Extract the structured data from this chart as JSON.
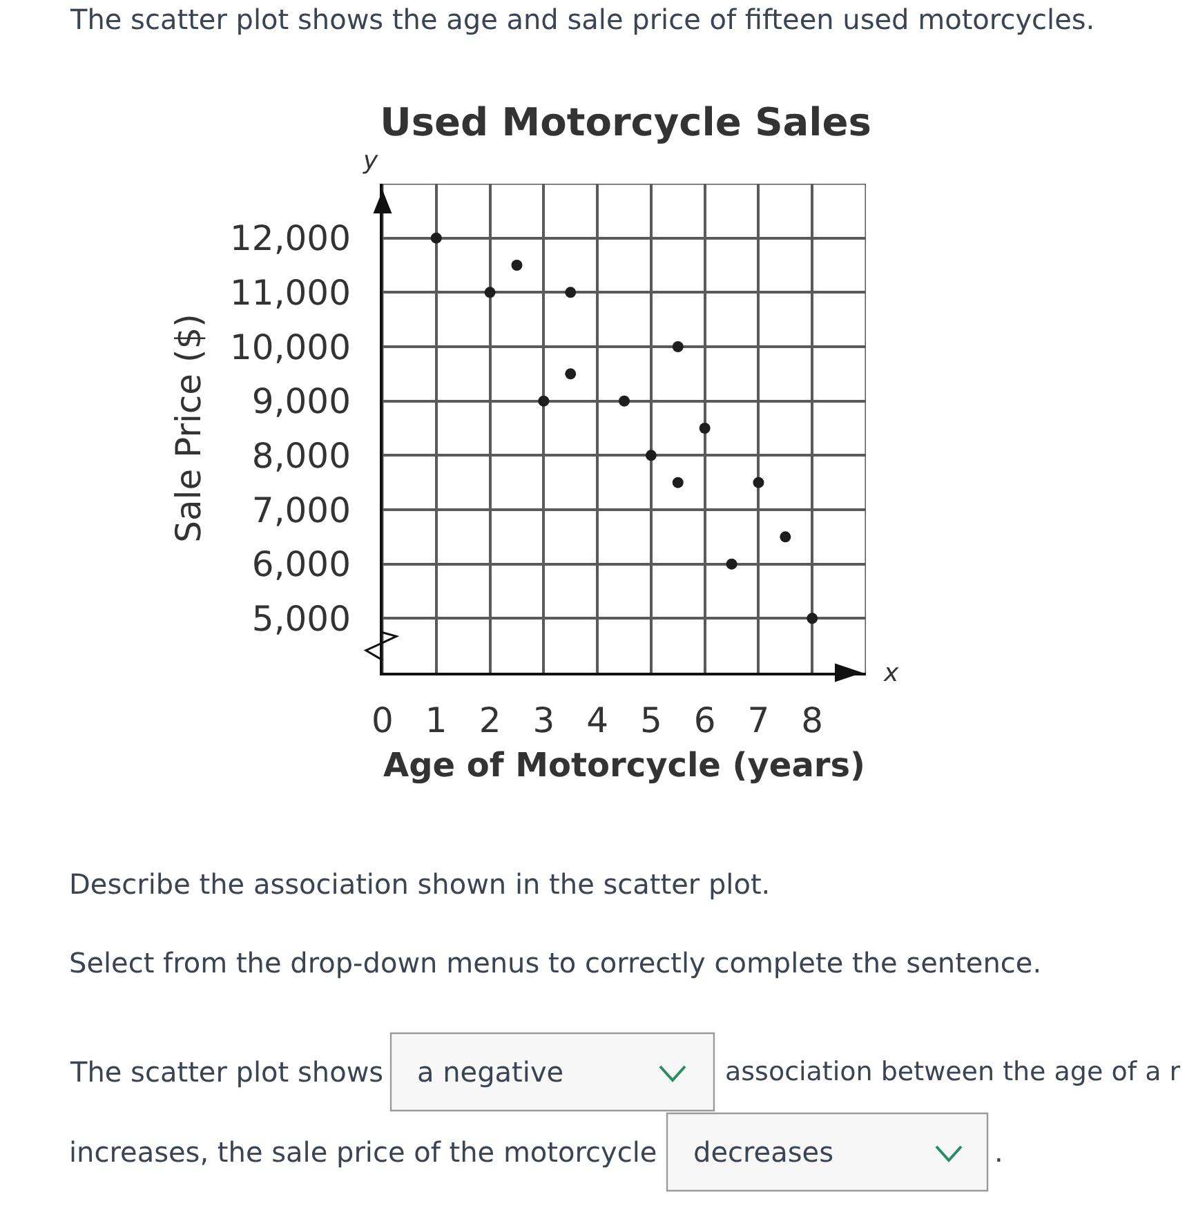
{
  "chart_data": {
    "type": "scatter",
    "title": "Used Motorcycle Sales",
    "xlabel": "Age of Motorcycle (years)",
    "ylabel": "Sale Price ($)",
    "annotations": [
      "y",
      "x",
      "The scatter plot shows the age and sale price of fifteen used motorcycles.",
      "Describe the association shown in the scatter plot.",
      "Select from the drop-down menus to correctly complete the sentence.",
      "The scatter plot shows",
      "a negative",
      "association between the age of a r",
      "increases, the sale price of the motorcycle",
      "decreases",
      "."
    ],
    "x": [
      1,
      2.5,
      2,
      3.5,
      5.5,
      3.5,
      3,
      4.5,
      6,
      5,
      5.5,
      7,
      7.5,
      6.5,
      8
    ],
    "series": [
      {
        "color": "#1e1e1e",
        "values": [
          12000,
          11500,
          11000,
          11000,
          10000,
          9500,
          9000,
          9000,
          8500,
          8000,
          7500,
          7500,
          6500,
          6000,
          5000
        ]
      }
    ],
    "xlim": [
      0,
      9
    ],
    "ylim": [
      4000,
      13000
    ],
    "xticks": [
      0,
      1,
      2,
      3,
      4,
      5,
      6,
      7,
      8,
      {
        "value": 9,
        "label": null
      }
    ],
    "yticks": [
      {
        "value": 5000,
        "label": "5,000"
      },
      {
        "value": 6000,
        "label": "6,000"
      },
      {
        "value": 7000,
        "label": "7,000"
      },
      {
        "value": 8000,
        "label": "8,000"
      },
      {
        "value": 9000,
        "label": "9,000"
      },
      {
        "value": 10000,
        "label": "10,000"
      },
      {
        "value": 11000,
        "label": "11,000"
      },
      {
        "value": 12000,
        "label": "12,000"
      },
      {
        "value": 13000,
        "label": null
      }
    ],
    "grid": true,
    "marker": "circle"
  }
}
